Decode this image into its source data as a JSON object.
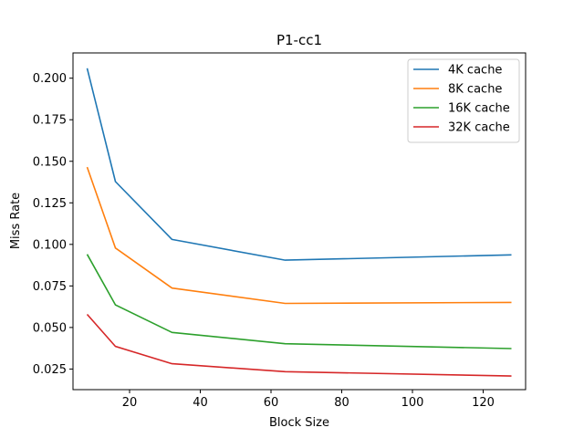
{
  "chart_data": {
    "type": "line",
    "title": "P1-cc1",
    "xlabel": "Block Size",
    "ylabel": "Miss Rate",
    "xlim": [
      4,
      132
    ],
    "ylim": [
      0.0126,
      0.2152
    ],
    "xticks": [
      20,
      40,
      60,
      80,
      100,
      120
    ],
    "yticks": [
      0.025,
      0.05,
      0.075,
      0.1,
      0.125,
      0.15,
      0.175,
      0.2
    ],
    "xtick_labels": [
      "20",
      "40",
      "60",
      "80",
      "100",
      "120"
    ],
    "ytick_labels": [
      "0.025",
      "0.050",
      "0.075",
      "0.100",
      "0.125",
      "0.150",
      "0.175",
      "0.200"
    ],
    "grid": false,
    "legend_position": "top-right",
    "x": [
      8,
      16,
      32,
      64,
      128
    ],
    "series": [
      {
        "name": "4K cache",
        "color": "#1f77b4",
        "values": [
          0.206,
          0.1378,
          0.103,
          0.0905,
          0.0937
        ]
      },
      {
        "name": "8K cache",
        "color": "#ff7f0e",
        "values": [
          0.1465,
          0.0978,
          0.0737,
          0.0645,
          0.0651
        ]
      },
      {
        "name": "16K cache",
        "color": "#2ca02c",
        "values": [
          0.094,
          0.0636,
          0.047,
          0.0402,
          0.0373
        ]
      },
      {
        "name": "32K cache",
        "color": "#d62728",
        "values": [
          0.0579,
          0.0386,
          0.0282,
          0.0234,
          0.0208
        ]
      }
    ]
  }
}
